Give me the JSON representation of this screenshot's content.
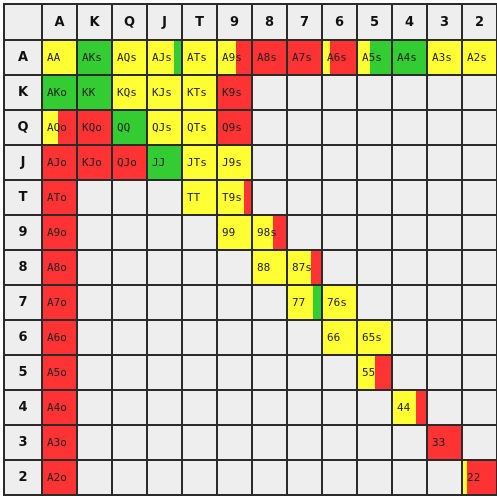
{
  "colors": {
    "yellow": "#ffff33",
    "green": "#33cc33",
    "red": "#ff3333",
    "empty": "#eeeeee"
  },
  "ranks": [
    "A",
    "K",
    "Q",
    "J",
    "T",
    "9",
    "8",
    "7",
    "6",
    "5",
    "4",
    "3",
    "2"
  ],
  "rows": [
    [
      {
        "label": "AA",
        "segs": [
          {
            "c": "yellow",
            "w": 1
          }
        ]
      },
      {
        "label": "AKs",
        "segs": [
          {
            "c": "green",
            "w": 1
          }
        ]
      },
      {
        "label": "AQs",
        "segs": [
          {
            "c": "yellow",
            "w": 1
          }
        ]
      },
      {
        "label": "AJs",
        "segs": [
          {
            "c": "yellow",
            "w": 0.8
          },
          {
            "c": "green",
            "w": 0.2
          }
        ]
      },
      {
        "label": "ATs",
        "segs": [
          {
            "c": "yellow",
            "w": 1
          }
        ]
      },
      {
        "label": "A9s",
        "segs": [
          {
            "c": "yellow",
            "w": 0.55
          },
          {
            "c": "red",
            "w": 0.45
          }
        ]
      },
      {
        "label": "A8s",
        "segs": [
          {
            "c": "red",
            "w": 1
          }
        ]
      },
      {
        "label": "A7s",
        "segs": [
          {
            "c": "red",
            "w": 1
          }
        ]
      },
      {
        "label": "A6s",
        "segs": [
          {
            "c": "yellow",
            "w": 0.2
          },
          {
            "c": "red",
            "w": 0.8
          }
        ]
      },
      {
        "label": "A5s",
        "segs": [
          {
            "c": "yellow",
            "w": 0.35
          },
          {
            "c": "green",
            "w": 0.65
          }
        ]
      },
      {
        "label": "A4s",
        "segs": [
          {
            "c": "green",
            "w": 1
          }
        ]
      },
      {
        "label": "A3s",
        "segs": [
          {
            "c": "yellow",
            "w": 1
          }
        ]
      },
      {
        "label": "A2s",
        "segs": [
          {
            "c": "yellow",
            "w": 1
          }
        ]
      }
    ],
    [
      {
        "label": "AKo",
        "segs": [
          {
            "c": "green",
            "w": 1
          }
        ]
      },
      {
        "label": "KK",
        "segs": [
          {
            "c": "green",
            "w": 1
          }
        ]
      },
      {
        "label": "KQs",
        "segs": [
          {
            "c": "yellow",
            "w": 1
          }
        ]
      },
      {
        "label": "KJs",
        "segs": [
          {
            "c": "yellow",
            "w": 1
          }
        ]
      },
      {
        "label": "KTs",
        "segs": [
          {
            "c": "yellow",
            "w": 1
          }
        ]
      },
      {
        "label": "K9s",
        "segs": [
          {
            "c": "red",
            "w": 1
          }
        ]
      },
      {
        "label": "",
        "segs": []
      },
      {
        "label": "",
        "segs": []
      },
      {
        "label": "",
        "segs": []
      },
      {
        "label": "",
        "segs": []
      },
      {
        "label": "",
        "segs": []
      },
      {
        "label": "",
        "segs": []
      },
      {
        "label": "",
        "segs": []
      }
    ],
    [
      {
        "label": "AQo",
        "segs": [
          {
            "c": "yellow",
            "w": 0.45
          },
          {
            "c": "red",
            "w": 0.55
          }
        ]
      },
      {
        "label": "KQo",
        "segs": [
          {
            "c": "red",
            "w": 1
          }
        ]
      },
      {
        "label": "QQ",
        "segs": [
          {
            "c": "green",
            "w": 1
          }
        ]
      },
      {
        "label": "QJs",
        "segs": [
          {
            "c": "yellow",
            "w": 1
          }
        ]
      },
      {
        "label": "QTs",
        "segs": [
          {
            "c": "yellow",
            "w": 1
          }
        ]
      },
      {
        "label": "Q9s",
        "segs": [
          {
            "c": "red",
            "w": 1
          }
        ]
      },
      {
        "label": "",
        "segs": []
      },
      {
        "label": "",
        "segs": []
      },
      {
        "label": "",
        "segs": []
      },
      {
        "label": "",
        "segs": []
      },
      {
        "label": "",
        "segs": []
      },
      {
        "label": "",
        "segs": []
      },
      {
        "label": "",
        "segs": []
      }
    ],
    [
      {
        "label": "AJo",
        "segs": [
          {
            "c": "red",
            "w": 1
          }
        ]
      },
      {
        "label": "KJo",
        "segs": [
          {
            "c": "red",
            "w": 1
          }
        ]
      },
      {
        "label": "QJo",
        "segs": [
          {
            "c": "red",
            "w": 1
          }
        ]
      },
      {
        "label": "JJ",
        "segs": [
          {
            "c": "green",
            "w": 1
          }
        ]
      },
      {
        "label": "JTs",
        "segs": [
          {
            "c": "yellow",
            "w": 1
          }
        ]
      },
      {
        "label": "J9s",
        "segs": [
          {
            "c": "yellow",
            "w": 1
          }
        ]
      },
      {
        "label": "",
        "segs": []
      },
      {
        "label": "",
        "segs": []
      },
      {
        "label": "",
        "segs": []
      },
      {
        "label": "",
        "segs": []
      },
      {
        "label": "",
        "segs": []
      },
      {
        "label": "",
        "segs": []
      },
      {
        "label": "",
        "segs": []
      }
    ],
    [
      {
        "label": "ATo",
        "segs": [
          {
            "c": "red",
            "w": 1
          }
        ]
      },
      {
        "label": "",
        "segs": []
      },
      {
        "label": "",
        "segs": []
      },
      {
        "label": "",
        "segs": []
      },
      {
        "label": "TT",
        "segs": [
          {
            "c": "yellow",
            "w": 1
          }
        ]
      },
      {
        "label": "T9s",
        "segs": [
          {
            "c": "yellow",
            "w": 0.8
          },
          {
            "c": "red",
            "w": 0.2
          }
        ]
      },
      {
        "label": "",
        "segs": []
      },
      {
        "label": "",
        "segs": []
      },
      {
        "label": "",
        "segs": []
      },
      {
        "label": "",
        "segs": []
      },
      {
        "label": "",
        "segs": []
      },
      {
        "label": "",
        "segs": []
      },
      {
        "label": "",
        "segs": []
      }
    ],
    [
      {
        "label": "A9o",
        "segs": [
          {
            "c": "red",
            "w": 1
          }
        ]
      },
      {
        "label": "",
        "segs": []
      },
      {
        "label": "",
        "segs": []
      },
      {
        "label": "",
        "segs": []
      },
      {
        "label": "",
        "segs": []
      },
      {
        "label": "99",
        "segs": [
          {
            "c": "yellow",
            "w": 1
          }
        ]
      },
      {
        "label": "98s",
        "segs": [
          {
            "c": "yellow",
            "w": 0.6
          },
          {
            "c": "red",
            "w": 0.4
          }
        ]
      },
      {
        "label": "",
        "segs": []
      },
      {
        "label": "",
        "segs": []
      },
      {
        "label": "",
        "segs": []
      },
      {
        "label": "",
        "segs": []
      },
      {
        "label": "",
        "segs": []
      },
      {
        "label": "",
        "segs": []
      }
    ],
    [
      {
        "label": "A8o",
        "segs": [
          {
            "c": "red",
            "w": 1
          }
        ]
      },
      {
        "label": "",
        "segs": []
      },
      {
        "label": "",
        "segs": []
      },
      {
        "label": "",
        "segs": []
      },
      {
        "label": "",
        "segs": []
      },
      {
        "label": "",
        "segs": []
      },
      {
        "label": "88",
        "segs": [
          {
            "c": "yellow",
            "w": 1
          }
        ]
      },
      {
        "label": "87s",
        "segs": [
          {
            "c": "yellow",
            "w": 0.7
          },
          {
            "c": "red",
            "w": 0.3
          }
        ]
      },
      {
        "label": "",
        "segs": []
      },
      {
        "label": "",
        "segs": []
      },
      {
        "label": "",
        "segs": []
      },
      {
        "label": "",
        "segs": []
      },
      {
        "label": "",
        "segs": []
      }
    ],
    [
      {
        "label": "A7o",
        "segs": [
          {
            "c": "red",
            "w": 1
          }
        ]
      },
      {
        "label": "",
        "segs": []
      },
      {
        "label": "",
        "segs": []
      },
      {
        "label": "",
        "segs": []
      },
      {
        "label": "",
        "segs": []
      },
      {
        "label": "",
        "segs": []
      },
      {
        "label": "",
        "segs": []
      },
      {
        "label": "77",
        "segs": [
          {
            "c": "yellow",
            "w": 0.75
          },
          {
            "c": "green",
            "w": 0.25
          }
        ]
      },
      {
        "label": "76s",
        "segs": [
          {
            "c": "yellow",
            "w": 1
          }
        ]
      },
      {
        "label": "",
        "segs": []
      },
      {
        "label": "",
        "segs": []
      },
      {
        "label": "",
        "segs": []
      },
      {
        "label": "",
        "segs": []
      }
    ],
    [
      {
        "label": "A6o",
        "segs": [
          {
            "c": "red",
            "w": 1
          }
        ]
      },
      {
        "label": "",
        "segs": []
      },
      {
        "label": "",
        "segs": []
      },
      {
        "label": "",
        "segs": []
      },
      {
        "label": "",
        "segs": []
      },
      {
        "label": "",
        "segs": []
      },
      {
        "label": "",
        "segs": []
      },
      {
        "label": "",
        "segs": []
      },
      {
        "label": "66",
        "segs": [
          {
            "c": "yellow",
            "w": 1
          }
        ]
      },
      {
        "label": "65s",
        "segs": [
          {
            "c": "yellow",
            "w": 1
          }
        ]
      },
      {
        "label": "",
        "segs": []
      },
      {
        "label": "",
        "segs": []
      },
      {
        "label": "",
        "segs": []
      }
    ],
    [
      {
        "label": "A5o",
        "segs": [
          {
            "c": "red",
            "w": 1
          }
        ]
      },
      {
        "label": "",
        "segs": []
      },
      {
        "label": "",
        "segs": []
      },
      {
        "label": "",
        "segs": []
      },
      {
        "label": "",
        "segs": []
      },
      {
        "label": "",
        "segs": []
      },
      {
        "label": "",
        "segs": []
      },
      {
        "label": "",
        "segs": []
      },
      {
        "label": "",
        "segs": []
      },
      {
        "label": "55",
        "segs": [
          {
            "c": "yellow",
            "w": 0.5
          },
          {
            "c": "red",
            "w": 0.5
          }
        ]
      },
      {
        "label": "",
        "segs": []
      },
      {
        "label": "",
        "segs": []
      },
      {
        "label": "",
        "segs": []
      }
    ],
    [
      {
        "label": "A4o",
        "segs": [
          {
            "c": "red",
            "w": 1
          }
        ]
      },
      {
        "label": "",
        "segs": []
      },
      {
        "label": "",
        "segs": []
      },
      {
        "label": "",
        "segs": []
      },
      {
        "label": "",
        "segs": []
      },
      {
        "label": "",
        "segs": []
      },
      {
        "label": "",
        "segs": []
      },
      {
        "label": "",
        "segs": []
      },
      {
        "label": "",
        "segs": []
      },
      {
        "label": "",
        "segs": []
      },
      {
        "label": "44",
        "segs": [
          {
            "c": "yellow",
            "w": 0.7
          },
          {
            "c": "red",
            "w": 0.3
          }
        ]
      },
      {
        "label": "",
        "segs": []
      },
      {
        "label": "",
        "segs": []
      }
    ],
    [
      {
        "label": "A3o",
        "segs": [
          {
            "c": "red",
            "w": 1
          }
        ]
      },
      {
        "label": "",
        "segs": []
      },
      {
        "label": "",
        "segs": []
      },
      {
        "label": "",
        "segs": []
      },
      {
        "label": "",
        "segs": []
      },
      {
        "label": "",
        "segs": []
      },
      {
        "label": "",
        "segs": []
      },
      {
        "label": "",
        "segs": []
      },
      {
        "label": "",
        "segs": []
      },
      {
        "label": "",
        "segs": []
      },
      {
        "label": "",
        "segs": []
      },
      {
        "label": "33",
        "segs": [
          {
            "c": "red",
            "w": 1
          }
        ]
      },
      {
        "label": "",
        "segs": []
      }
    ],
    [
      {
        "label": "A2o",
        "segs": [
          {
            "c": "red",
            "w": 1
          }
        ]
      },
      {
        "label": "",
        "segs": []
      },
      {
        "label": "",
        "segs": []
      },
      {
        "label": "",
        "segs": []
      },
      {
        "label": "",
        "segs": []
      },
      {
        "label": "",
        "segs": []
      },
      {
        "label": "",
        "segs": []
      },
      {
        "label": "",
        "segs": []
      },
      {
        "label": "",
        "segs": []
      },
      {
        "label": "",
        "segs": []
      },
      {
        "label": "",
        "segs": []
      },
      {
        "label": "",
        "segs": []
      },
      {
        "label": "22",
        "segs": [
          {
            "c": "yellow",
            "w": 0.12
          },
          {
            "c": "red",
            "w": 0.88
          }
        ]
      }
    ]
  ]
}
